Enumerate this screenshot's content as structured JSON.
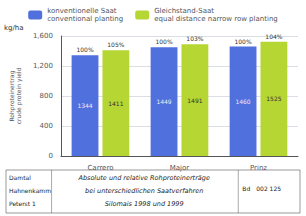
{
  "chart_data": {
    "type": "bar",
    "categories": [
      "Carrero",
      "Major",
      "Prinz"
    ],
    "series": [
      {
        "name": "konventionelle Saat\nconventional planting",
        "values": [
          1344,
          1449,
          1460
        ],
        "percent_labels": [
          "100%",
          "100%",
          "100%"
        ]
      },
      {
        "name": "Gleichstand-Saat\nequal distance narrow row planting",
        "values": [
          1411,
          1491,
          1525
        ],
        "percent_labels": [
          "105%",
          "103%",
          "104%"
        ]
      }
    ],
    "ylabel": "Rohproteinertrag\ncrude protein yield",
    "ylim": [
      0,
      1600
    ],
    "yticks": [
      0,
      400,
      800,
      1200,
      1600
    ],
    "grid": true,
    "legend": "top",
    "data_labels": true,
    "annotations": [
      "kg/ha"
    ],
    "footer": [
      [
        "Damtal",
        "Hahnenkamm",
        "Peterst 1"
      ],
      [
        "Absolute und relative Rohproteinerträge",
        "bei unterschiedlichen Saatverfahren",
        "Silomais 1998 und 1999"
      ],
      [
        "Bd",
        "002 125"
      ]
    ]
  }
}
